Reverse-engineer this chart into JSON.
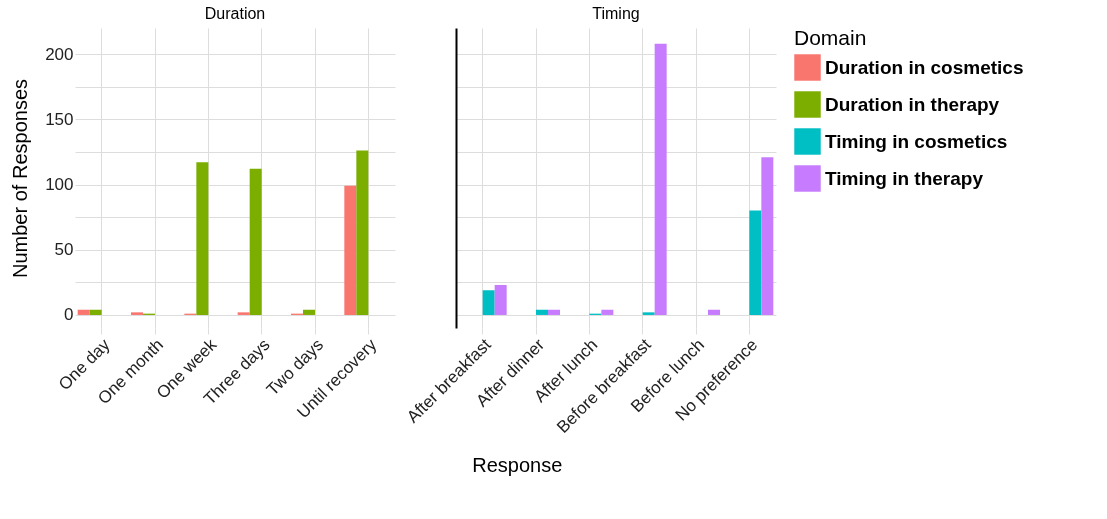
{
  "chart_data": [
    {
      "type": "bar",
      "title": "Duration",
      "xlabel": "Response",
      "ylabel": "Number of Responses",
      "legend_title": "Domain",
      "legend": "right",
      "grid": true,
      "categories": [
        "One day",
        "One month",
        "One week",
        "Three days",
        "Two days",
        "Until recovery"
      ],
      "ylim": [
        -10,
        220
      ],
      "yticks": [
        0,
        {
          "value": 25,
          "label": null
        },
        50,
        {
          "value": 75,
          "label": null
        },
        100,
        {
          "value": 125,
          "label": null
        },
        150,
        {
          "value": 175,
          "label": null
        },
        200
      ],
      "series": [
        {
          "name": "Duration in cosmetics",
          "color": "#f8766d",
          "values": [
            4,
            2,
            1,
            2,
            1,
            99
          ]
        },
        {
          "name": "Duration in therapy",
          "color": "#7cae00",
          "values": [
            4,
            1,
            117,
            112,
            4,
            126
          ]
        }
      ]
    },
    {
      "type": "bar",
      "title": "Timing",
      "legend": "right",
      "grid": true,
      "tick_labels": "x",
      "categories": [
        "After breakfast",
        "After dinner",
        "After lunch",
        "Before breakfast",
        "Before lunch",
        "No preference"
      ],
      "ylim": [
        -10,
        220
      ],
      "yticks": [
        0,
        {
          "value": 25,
          "label": null
        },
        50,
        {
          "value": 75,
          "label": null
        },
        100,
        {
          "value": 125,
          "label": null
        },
        150,
        {
          "value": 175,
          "label": null
        },
        200
      ],
      "series": [
        {
          "name": "Timing in cosmetics",
          "color": "#00bfc4",
          "values": [
            19,
            4,
            1,
            2,
            null,
            80
          ]
        },
        {
          "name": "Timing in therapy",
          "color": "#c77cff",
          "values": [
            23,
            4,
            4,
            208,
            4,
            121
          ]
        }
      ]
    }
  ]
}
